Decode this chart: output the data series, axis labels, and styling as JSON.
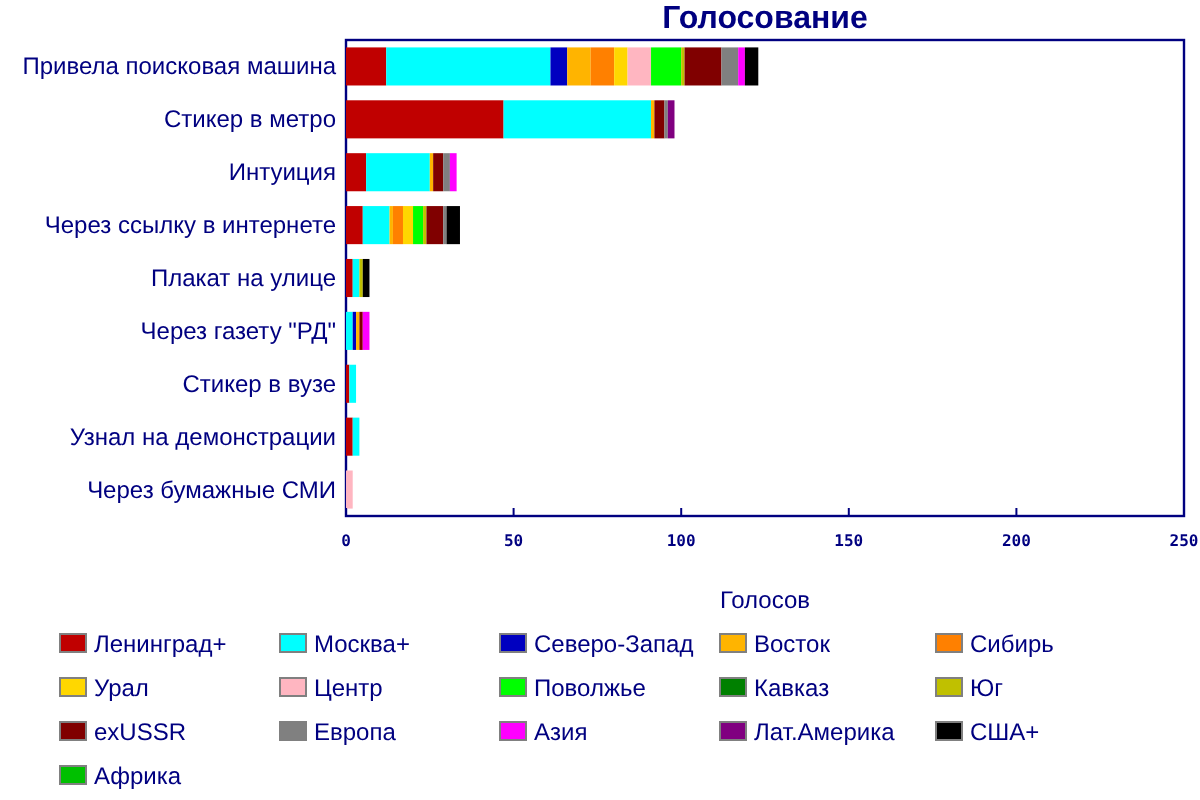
{
  "chart_data": {
    "type": "bar",
    "orientation": "horizontal",
    "stacked": true,
    "title": "Голосование",
    "xlabel": "Голосов",
    "categories": [
      "Привела поисковая машина",
      "Стикер в метро",
      "Интуиция",
      "Через ссылку в интернете",
      "Плакат на улице",
      "Через газету \"РД\"",
      "Стикер в вузе",
      "Узнал на демонстрации",
      "Через бумажные СМИ"
    ],
    "xlim": [
      0,
      250
    ],
    "xticks": [
      0,
      50,
      100,
      150,
      200,
      250
    ],
    "grid": false,
    "legend": "bottom",
    "series": [
      {
        "name": "Ленинград+",
        "color": "#c00000",
        "values": [
          12,
          47,
          6,
          5,
          2,
          0,
          1,
          2,
          0
        ]
      },
      {
        "name": "Москва+",
        "color": "#00ffff",
        "values": [
          49,
          44,
          19,
          8,
          2,
          2,
          2,
          2,
          0
        ]
      },
      {
        "name": "Северо-Запад",
        "color": "#0000c0",
        "values": [
          5,
          0,
          0,
          0,
          0,
          1,
          0,
          0,
          0
        ]
      },
      {
        "name": "Восток",
        "color": "#ffb400",
        "values": [
          7,
          1,
          1,
          1,
          0,
          1,
          0,
          0,
          0
        ]
      },
      {
        "name": "Сибирь",
        "color": "#ff8000",
        "values": [
          7,
          0,
          0,
          3,
          0,
          0,
          0,
          0,
          0
        ]
      },
      {
        "name": "Урал",
        "color": "#ffd700",
        "values": [
          4,
          0,
          0,
          3,
          0,
          0,
          0,
          0,
          0
        ]
      },
      {
        "name": "Центр",
        "color": "#ffb6c1",
        "values": [
          7,
          0,
          0,
          0,
          0,
          0,
          0,
          0,
          2
        ]
      },
      {
        "name": "Поволжье",
        "color": "#00ff00",
        "values": [
          9,
          0,
          0,
          3,
          0,
          0,
          0,
          0,
          0
        ]
      },
      {
        "name": "Кавказ",
        "color": "#008000",
        "values": [
          0,
          0,
          0,
          0,
          0,
          0,
          0,
          0,
          0
        ]
      },
      {
        "name": "Юг",
        "color": "#c0c000",
        "values": [
          1,
          0,
          0,
          1,
          1,
          0,
          0,
          0,
          0
        ]
      },
      {
        "name": "exUSSR",
        "color": "#800000",
        "values": [
          11,
          3,
          3,
          5,
          0,
          1,
          0,
          0,
          0
        ]
      },
      {
        "name": "Европа",
        "color": "#808080",
        "values": [
          5,
          1,
          2,
          1,
          0,
          0,
          0,
          0,
          0
        ]
      },
      {
        "name": "Азия",
        "color": "#ff00ff",
        "values": [
          2,
          0,
          2,
          0,
          0,
          2,
          0,
          0,
          0
        ]
      },
      {
        "name": "Лат.Америка",
        "color": "#800080",
        "values": [
          0,
          2,
          0,
          0,
          0,
          0,
          0,
          0,
          0
        ]
      },
      {
        "name": "США+",
        "color": "#000000",
        "values": [
          4,
          0,
          0,
          4,
          2,
          0,
          0,
          0,
          0
        ]
      },
      {
        "name": "Африка",
        "color": "#00c000",
        "values": [
          0,
          0,
          0,
          0,
          0,
          0,
          0,
          0,
          0
        ]
      }
    ]
  }
}
